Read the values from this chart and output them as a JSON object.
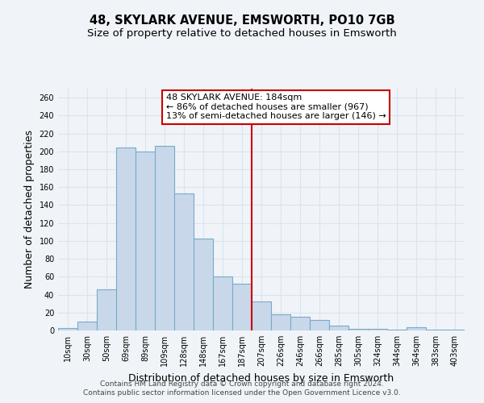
{
  "title": "48, SKYLARK AVENUE, EMSWORTH, PO10 7GB",
  "subtitle": "Size of property relative to detached houses in Emsworth",
  "xlabel": "Distribution of detached houses by size in Emsworth",
  "ylabel": "Number of detached properties",
  "bar_labels": [
    "10sqm",
    "30sqm",
    "50sqm",
    "69sqm",
    "89sqm",
    "109sqm",
    "128sqm",
    "148sqm",
    "167sqm",
    "187sqm",
    "207sqm",
    "226sqm",
    "246sqm",
    "266sqm",
    "285sqm",
    "305sqm",
    "324sqm",
    "344sqm",
    "364sqm",
    "383sqm",
    "403sqm"
  ],
  "bar_values": [
    3,
    10,
    46,
    204,
    200,
    206,
    153,
    103,
    60,
    52,
    32,
    18,
    15,
    12,
    5,
    2,
    2,
    1,
    4,
    1,
    1
  ],
  "bar_color": "#c8d8ea",
  "bar_edge_color": "#7aaac8",
  "highlight_color": "#cc0000",
  "annotation_box_text_line1": "48 SKYLARK AVENUE: 184sqm",
  "annotation_box_text_line2": "← 86% of detached houses are smaller (967)",
  "annotation_box_text_line3": "13% of semi-detached houses are larger (146) →",
  "vline_x": 9.5,
  "ylim": [
    0,
    270
  ],
  "yticks": [
    0,
    20,
    40,
    60,
    80,
    100,
    120,
    140,
    160,
    180,
    200,
    220,
    240,
    260
  ],
  "footer_line1": "Contains HM Land Registry data © Crown copyright and database right 2024.",
  "footer_line2": "Contains public sector information licensed under the Open Government Licence v3.0.",
  "background_color": "#f0f4f8",
  "grid_color": "#d8e4f0",
  "title_fontsize": 10.5,
  "subtitle_fontsize": 9.5,
  "axis_label_fontsize": 9,
  "tick_fontsize": 7,
  "footer_fontsize": 6.5,
  "annotation_fontsize": 8
}
